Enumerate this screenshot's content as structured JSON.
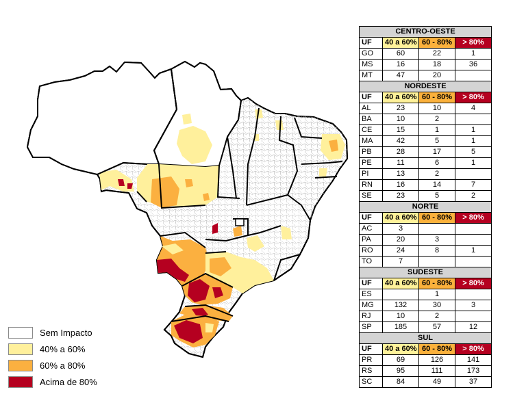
{
  "legend": [
    {
      "label": "Sem Impacto",
      "color": "#ffffff"
    },
    {
      "label": "40% a 60%",
      "color": "#fff09c"
    },
    {
      "label": "60% a 80%",
      "color": "#fbb040"
    },
    {
      "label": "Acima de 80%",
      "color": "#b50020"
    }
  ],
  "table": {
    "header": {
      "uf": "UF",
      "c1": "40 a 60%",
      "c2": "60 - 80%",
      "c3": "> 80%"
    },
    "regions": [
      {
        "name": "CENTRO-OESTE",
        "rows": [
          {
            "uf": "GO",
            "c1": "60",
            "c2": "22",
            "c3": "1"
          },
          {
            "uf": "MS",
            "c1": "16",
            "c2": "18",
            "c3": "36"
          },
          {
            "uf": "MT",
            "c1": "47",
            "c2": "20",
            "c3": ""
          }
        ]
      },
      {
        "name": "NORDESTE",
        "rows": [
          {
            "uf": "AL",
            "c1": "23",
            "c2": "10",
            "c3": "4"
          },
          {
            "uf": "BA",
            "c1": "10",
            "c2": "2",
            "c3": ""
          },
          {
            "uf": "CE",
            "c1": "15",
            "c2": "1",
            "c3": "1"
          },
          {
            "uf": "MA",
            "c1": "42",
            "c2": "5",
            "c3": "1"
          },
          {
            "uf": "PB",
            "c1": "28",
            "c2": "17",
            "c3": "5"
          },
          {
            "uf": "PE",
            "c1": "11",
            "c2": "6",
            "c3": "1"
          },
          {
            "uf": "PI",
            "c1": "13",
            "c2": "2",
            "c3": ""
          },
          {
            "uf": "RN",
            "c1": "16",
            "c2": "14",
            "c3": "7"
          },
          {
            "uf": "SE",
            "c1": "23",
            "c2": "5",
            "c3": "2"
          }
        ]
      },
      {
        "name": "NORTE",
        "rows": [
          {
            "uf": "AC",
            "c1": "3",
            "c2": "",
            "c3": ""
          },
          {
            "uf": "PA",
            "c1": "20",
            "c2": "3",
            "c3": ""
          },
          {
            "uf": "RO",
            "c1": "24",
            "c2": "8",
            "c3": "1"
          },
          {
            "uf": "TO",
            "c1": "7",
            "c2": "",
            "c3": ""
          }
        ]
      },
      {
        "name": "SUDESTE",
        "rows": [
          {
            "uf": "ES",
            "c1": "",
            "c2": "1",
            "c3": ""
          },
          {
            "uf": "MG",
            "c1": "132",
            "c2": "30",
            "c3": "3"
          },
          {
            "uf": "RJ",
            "c1": "10",
            "c2": "2",
            "c3": ""
          },
          {
            "uf": "SP",
            "c1": "185",
            "c2": "57",
            "c3": "12"
          }
        ]
      },
      {
        "name": "SUL",
        "rows": [
          {
            "uf": "PR",
            "c1": "69",
            "c2": "126",
            "c3": "141"
          },
          {
            "uf": "RS",
            "c1": "95",
            "c2": "111",
            "c3": "173"
          },
          {
            "uf": "SC",
            "c1": "84",
            "c2": "49",
            "c3": "37"
          }
        ]
      }
    ]
  }
}
